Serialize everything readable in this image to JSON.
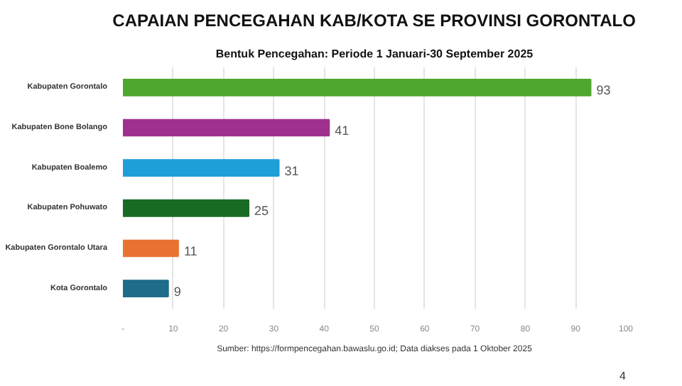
{
  "chart_data": {
    "type": "bar",
    "orientation": "horizontal",
    "title": "CAPAIAN PENCEGAHAN KAB/KOTA SE PROVINSI GORONTALO",
    "subtitle": "Bentuk Pencegahan: Periode 1 Januari-30 September 2025",
    "categories": [
      "Kabupaten Gorontalo",
      "Kabupaten Bone Bolango",
      "Kabupaten Boalemo",
      "Kabupaten Pohuwato",
      "Kabupaten Gorontalo Utara",
      "Kota Gorontalo"
    ],
    "values": [
      93,
      41,
      31,
      25,
      11,
      9
    ],
    "colors": [
      "#4ea72e",
      "#a0308f",
      "#1e9fd7",
      "#196b24",
      "#e97132",
      "#1f6b8a"
    ],
    "xlim": [
      0,
      100
    ],
    "xticks": [
      {
        "value": 0,
        "label": "-"
      },
      10,
      20,
      30,
      40,
      50,
      60,
      70,
      80,
      90,
      100
    ],
    "grid": "x",
    "data_labels": true,
    "annotations": [
      "Sumber: https://formpencegahan.bawaslu.go.id; Data diakses pada 1 Oktober 2025",
      "4"
    ]
  }
}
